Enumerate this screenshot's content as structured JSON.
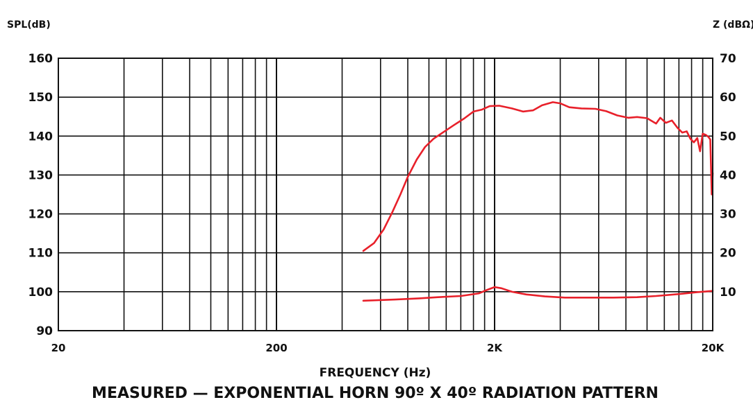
{
  "chart_data": {
    "type": "line",
    "title": "",
    "caption": "MEASURED — EXPONENTIAL HORN 90º X 40º RADIATION PATTERN",
    "xlabel": "FREQUENCY (Hz)",
    "ylabel_left": "SPL(dB)",
    "ylabel_right": "Z (dBΩ)",
    "x_scale": "log",
    "xlim": [
      20,
      20000
    ],
    "ylim_left": [
      90,
      160
    ],
    "ylim_right": [
      0,
      70
    ],
    "grid": true,
    "x_tick_labels": [
      "20",
      "200",
      "2K",
      "20K"
    ],
    "x_ticks": [
      20,
      200,
      2000,
      20000
    ],
    "y_ticks_left": [
      90,
      100,
      110,
      120,
      130,
      140,
      150,
      160
    ],
    "y_tick_labels_left": [
      "90",
      "100",
      "110",
      "120",
      "130",
      "140",
      "150",
      "160"
    ],
    "y_ticks_right": [
      10,
      20,
      30,
      40,
      50,
      60,
      70
    ],
    "y_tick_labels_right": [
      "10",
      "20",
      "30",
      "40",
      "50",
      "60",
      "70"
    ],
    "line_color": "#e8202a",
    "series": [
      {
        "values": [
          [
            500,
            110.5
          ],
          [
            560,
            112.5
          ],
          [
            620,
            116
          ],
          [
            680,
            120.5
          ],
          [
            740,
            125
          ],
          [
            800,
            129.5
          ],
          [
            880,
            134
          ],
          [
            960,
            137.2
          ],
          [
            1050,
            139.3
          ],
          [
            1150,
            140.8
          ],
          [
            1300,
            142.8
          ],
          [
            1450,
            144.5
          ],
          [
            1600,
            146.3
          ],
          [
            1750,
            146.8
          ],
          [
            1900,
            147.7
          ],
          [
            2100,
            147.8
          ],
          [
            2400,
            147.1
          ],
          [
            2700,
            146.3
          ],
          [
            3000,
            146.6
          ],
          [
            3300,
            147.9
          ],
          [
            3700,
            148.7
          ],
          [
            4000,
            148.4
          ],
          [
            4400,
            147.4
          ],
          [
            5000,
            147.1
          ],
          [
            5800,
            147.0
          ],
          [
            6500,
            146.4
          ],
          [
            7300,
            145.3
          ],
          [
            8200,
            144.7
          ],
          [
            9000,
            144.9
          ],
          [
            10000,
            144.6
          ],
          [
            11000,
            143.2
          ],
          [
            11500,
            144.7
          ],
          [
            12200,
            143.4
          ],
          [
            13000,
            144.0
          ],
          [
            13800,
            142.1
          ],
          [
            14500,
            140.9
          ],
          [
            15200,
            141.2
          ],
          [
            15800,
            139.3
          ],
          [
            16400,
            138.4
          ],
          [
            17000,
            139.5
          ],
          [
            17500,
            136.1
          ],
          [
            18000,
            140.6
          ],
          [
            18600,
            140.3
          ],
          [
            19100,
            139.8
          ],
          [
            19500,
            139.1
          ],
          [
            19800,
            125.0
          ],
          [
            20000,
            130.5
          ]
        ]
      },
      {
        "values": [
          [
            500,
            97.7
          ],
          [
            700,
            98.0
          ],
          [
            900,
            98.3
          ],
          [
            1100,
            98.6
          ],
          [
            1400,
            98.9
          ],
          [
            1700,
            99.6
          ],
          [
            1850,
            100.5
          ],
          [
            2000,
            101.2
          ],
          [
            2150,
            100.9
          ],
          [
            2400,
            100.0
          ],
          [
            2800,
            99.3
          ],
          [
            3400,
            98.8
          ],
          [
            4200,
            98.5
          ],
          [
            5500,
            98.5
          ],
          [
            7000,
            98.5
          ],
          [
            9000,
            98.6
          ],
          [
            11000,
            98.9
          ],
          [
            14000,
            99.4
          ],
          [
            17000,
            99.9
          ],
          [
            20000,
            100.2
          ]
        ]
      }
    ]
  }
}
